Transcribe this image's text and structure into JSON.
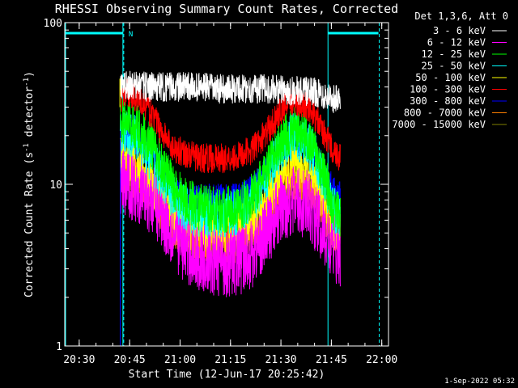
{
  "chart_data": {
    "type": "line",
    "title": "RHESSI Observing Summary Count Rates, Corrected",
    "xlabel": "Start Time (12-Jun-17 20:25:42)",
    "ylabel_parts": [
      "Corrected Count Rate (s",
      "-1",
      " detector",
      "-1",
      ")"
    ],
    "xlim": [
      "20:25:42",
      "22:02:00"
    ],
    "ylim": [
      1,
      100
    ],
    "y_scale": "log",
    "x_ticks": [
      "20:30",
      "20:45",
      "21:00",
      "21:15",
      "21:30",
      "21:45",
      "22:00"
    ],
    "x_tick_minutes": [
      4.3,
      19.3,
      34.3,
      49.3,
      64.3,
      79.3,
      94.3
    ],
    "y_ticks": [
      {
        "value": 1,
        "label": "1"
      },
      {
        "value": 10,
        "label": "10"
      },
      {
        "value": 100,
        "label": "100"
      }
    ],
    "legend_header": "Det 1,3,6, Att 0",
    "legend_placement": "outside-right",
    "series": [
      {
        "name": "3 - 6 keV",
        "color": "#ffffff",
        "t": [
          16.5,
          20,
          25,
          30,
          35,
          40,
          45,
          50,
          55,
          60,
          65,
          70,
          75,
          80,
          82
        ],
        "values": [
          40,
          41,
          40,
          40,
          40,
          40,
          39,
          39,
          39,
          39,
          38,
          38,
          37,
          34,
          33
        ],
        "noise": 0.05
      },
      {
        "name": "6 - 12 keV",
        "color": "#ff00ff",
        "t": [
          16.5,
          18,
          22,
          26,
          29,
          32,
          36,
          40,
          44,
          48,
          52,
          56,
          60,
          64,
          68,
          72,
          75,
          78,
          80,
          82
        ],
        "values": [
          9.5,
          10,
          9.5,
          8,
          6.5,
          5,
          4,
          3.5,
          3.3,
          3.3,
          3.4,
          3.8,
          5,
          7,
          8,
          7.5,
          6,
          4.5,
          4,
          3.8
        ],
        "noise": 0.12
      },
      {
        "name": "12 - 25 keV",
        "color": "#00ff00",
        "t": [
          16.5,
          18,
          22,
          26,
          29,
          32,
          36,
          40,
          44,
          48,
          52,
          56,
          60,
          64,
          68,
          72,
          75,
          78,
          80,
          82
        ],
        "values": [
          23,
          25,
          22,
          17,
          13,
          10,
          8,
          7.2,
          7,
          7,
          7.2,
          8.5,
          12,
          18,
          22,
          20,
          15,
          10,
          7,
          6.5
        ],
        "noise": 0.08
      },
      {
        "name": "25 - 50 keV",
        "color": "#00ffff",
        "t": [
          16.5,
          18,
          22,
          26,
          29,
          32,
          36,
          40,
          44,
          48,
          52,
          56,
          60,
          64,
          68,
          72,
          75,
          78,
          80,
          82
        ],
        "values": [
          20,
          21,
          19,
          14,
          11,
          8.5,
          7,
          6.5,
          6.5,
          6.5,
          6.8,
          8,
          11,
          16,
          20,
          18,
          14,
          9,
          7,
          6.5
        ],
        "noise": 0.08
      },
      {
        "name": "50 - 100 keV",
        "color": "#ffff00",
        "t": [
          16.5,
          18,
          22,
          26,
          29,
          32,
          36,
          40,
          44,
          48,
          52,
          56,
          60,
          64,
          68,
          72,
          75,
          78,
          80,
          82
        ],
        "values": [
          14,
          14,
          13,
          10,
          8,
          6.5,
          5.5,
          5.2,
          5.2,
          5.2,
          5.3,
          6,
          8,
          11,
          13,
          12,
          10,
          7,
          5.5,
          5
        ],
        "noise": 0.08
      },
      {
        "name": "100 - 300 keV",
        "color": "#ff0000",
        "t": [
          16.5,
          18,
          22,
          26,
          29,
          32,
          36,
          40,
          44,
          48,
          52,
          56,
          60,
          64,
          68,
          72,
          75,
          78,
          80,
          82
        ],
        "values": [
          34,
          37,
          34,
          27,
          21,
          17,
          15.5,
          14.5,
          14.5,
          14.5,
          15,
          16.5,
          21,
          28,
          33,
          31,
          25,
          19,
          16,
          14.5
        ],
        "noise": 0.05
      },
      {
        "name": "300 - 800 keV",
        "color": "#0000ff",
        "t": [
          16.5,
          18,
          22,
          26,
          29,
          32,
          36,
          40,
          44,
          48,
          52,
          56,
          60,
          64,
          68,
          72,
          75,
          78,
          80,
          82
        ],
        "values": [
          19,
          19,
          18,
          15,
          12,
          9.5,
          8.3,
          8.2,
          8.2,
          8.2,
          8.3,
          9.5,
          12,
          16,
          19,
          18,
          15,
          11,
          9,
          8.5
        ],
        "noise": 0.05
      },
      {
        "name": "800 - 7000 keV",
        "color": "#ff8000",
        "t": [
          16.5,
          18,
          22,
          26,
          29,
          32,
          36,
          40,
          44,
          48,
          52,
          56,
          60,
          64,
          68,
          72,
          75,
          78,
          80,
          82
        ],
        "values": [
          12,
          12,
          11,
          9,
          7,
          5.5,
          4.8,
          4.5,
          4.5,
          4.5,
          4.6,
          5.2,
          7,
          9.5,
          11,
          10,
          8.5,
          6,
          5,
          4.8
        ],
        "noise": 0.08
      },
      {
        "name": "7000 - 15000 keV",
        "color": "#808000",
        "t": [
          16.5,
          18,
          22,
          26,
          29,
          32,
          36,
          40,
          44,
          48,
          52,
          56,
          60,
          64,
          68,
          72,
          75,
          78,
          80,
          82
        ],
        "values": [
          12,
          12,
          11,
          9,
          7,
          5.5,
          4.8,
          4.5,
          4.5,
          4.5,
          4.6,
          5.2,
          7,
          9.5,
          11,
          10,
          8.5,
          6,
          5,
          4.8
        ],
        "noise": 0.06
      }
    ],
    "night_intervals": [
      {
        "start_min": 0,
        "end_min": 17.3
      },
      {
        "start_min": 78.3,
        "end_min": 93.3
      }
    ],
    "saa_marks_min": [
      17.3,
      78.3
    ],
    "dashed_marks_min": [
      17.3,
      93.3
    ],
    "n_label": "N",
    "n_label_min": 19.0
  },
  "timestamp": "1-Sep-2022 05:32"
}
